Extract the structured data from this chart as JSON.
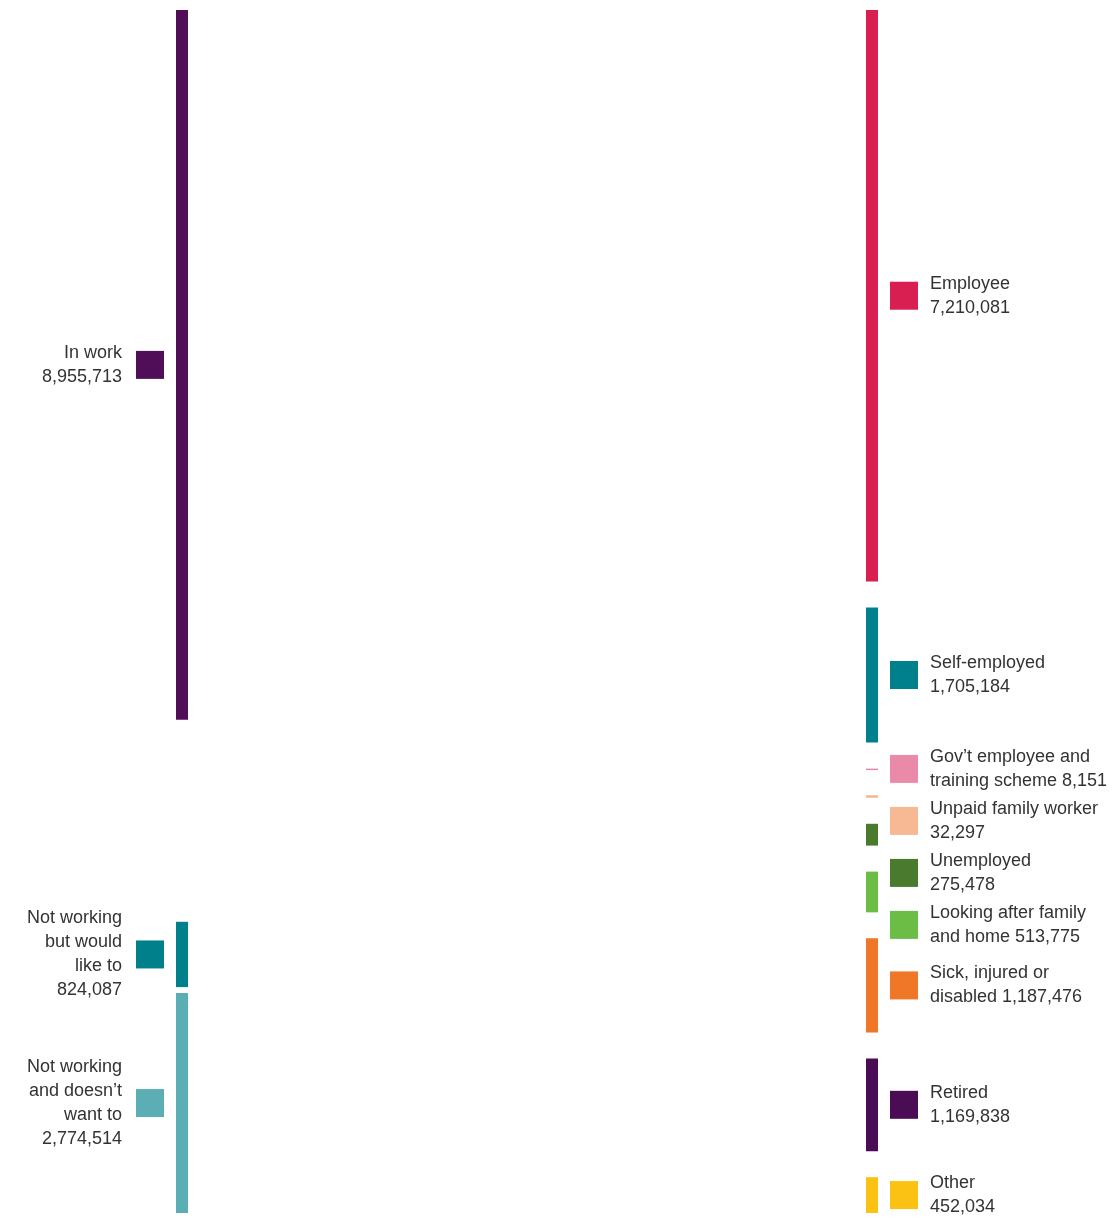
{
  "chart_data": {
    "type": "other",
    "categories": [
      "In work",
      "Not working but would like to",
      "Not working and doesn’t want to",
      "Employee",
      "Self-employed",
      "Gov’t employee and training scheme",
      "Unpaid family worker",
      "Unemployed",
      "Looking after family and home",
      "Sick, injured or disabled",
      "Retired",
      "Other"
    ],
    "values": [
      8955713,
      824087,
      2774514,
      7210081,
      1705184,
      8151,
      32297,
      275478,
      513775,
      1187476,
      1169838,
      452034
    ],
    "value_labels": [
      "8,955,713",
      "824,087",
      "2,774,514",
      "7,210,081",
      "1,705,184",
      "8,151",
      "32,297",
      "275,478",
      "513,775",
      "1,187,476",
      "1,169,838",
      "452,034"
    ],
    "colors": [
      "#4f0e57",
      "#00808a",
      "#5aaeb4",
      "#d91f52",
      "#00808c",
      "#e98ba8",
      "#f7b894",
      "#4a7a2e",
      "#6bbd45",
      "#f07628",
      "#4a0d55",
      "#fbc113"
    ]
  }
}
